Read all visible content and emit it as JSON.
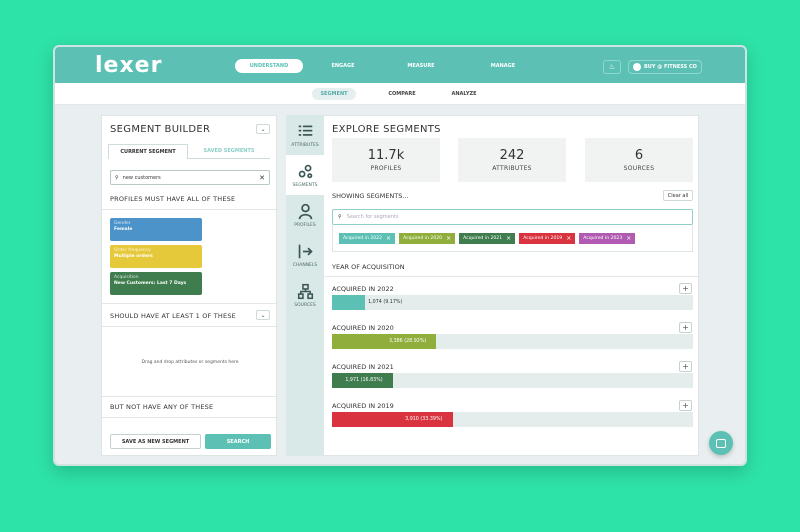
{
  "app": {
    "logo": "lexer"
  },
  "nav": {
    "tabs": [
      {
        "label": "UNDERSTAND",
        "active": true
      },
      {
        "label": "ENGAGE",
        "active": false
      },
      {
        "label": "MEASURE",
        "active": false
      },
      {
        "label": "MANAGE",
        "active": false
      }
    ],
    "account": "BUY @ FITNESS CO"
  },
  "subnav": {
    "tabs": [
      {
        "label": "SEGMENT",
        "active": true
      },
      {
        "label": "COMPARE",
        "active": false
      },
      {
        "label": "ANALYZE",
        "active": false
      }
    ]
  },
  "builder": {
    "title": "SEGMENT BUILDER",
    "tabs": [
      "CURRENT SEGMENT",
      "SAVED SEGMENTS"
    ],
    "search_value": "new customers",
    "must_label": "PROFILES MUST HAVE ALL OF THESE",
    "chips": [
      {
        "key": "Gender",
        "value": "Female",
        "color": "#4c93c9"
      },
      {
        "key": "Order frequency",
        "value": "Multiple orders",
        "color": "#e6c93a"
      },
      {
        "key": "Acquisition",
        "value": "New Customers: Last 7 Days",
        "color": "#3f7d4e"
      }
    ],
    "should_label": "SHOULD HAVE AT LEAST 1 OF THESE",
    "drop_text": "Drag and drop attributes or segments here",
    "not_label": "BUT NOT HAVE ANY OF THESE",
    "save_button": "SAVE AS NEW SEGMENT",
    "search_button": "SEARCH"
  },
  "rail": [
    {
      "label": "ATTRIBUTES",
      "icon": "list-icon",
      "active": false
    },
    {
      "label": "SEGMENTS",
      "icon": "segments-icon",
      "active": true
    },
    {
      "label": "PROFILES",
      "icon": "profile-icon",
      "active": false
    },
    {
      "label": "CHANNELS",
      "icon": "channels-icon",
      "active": false
    },
    {
      "label": "SOURCES",
      "icon": "sources-icon",
      "active": false
    }
  ],
  "explore": {
    "title": "EXPLORE SEGMENTS",
    "stats": [
      {
        "value": "11.7k",
        "label": "PROFILES"
      },
      {
        "value": "242",
        "label": "ATTRIBUTES"
      },
      {
        "value": "6",
        "label": "SOURCES"
      }
    ],
    "showing_label": "SHOWING SEGMENTS...",
    "clear_label": "Clear all",
    "search_placeholder": "Search for segments",
    "tags": [
      {
        "label": "Acquired in 2022",
        "color": "#5cc0b5"
      },
      {
        "label": "Acquired in 2020",
        "color": "#8fae3c"
      },
      {
        "label": "Acquired in 2021",
        "color": "#3f7d4e"
      },
      {
        "label": "Acquired in 2019",
        "color": "#d8333f"
      },
      {
        "label": "Acquired in 2023",
        "color": "#b05bb1"
      }
    ],
    "year_heading": "YEAR OF ACQUISITION",
    "buckets": [
      {
        "label": "ACQUIRED IN 2022",
        "value_text": "1,074 (9.17%)",
        "fraction": 0.0917,
        "color": "#5cc0b5"
      },
      {
        "label": "ACQUIRED IN 2020",
        "value_text": "3,386 (28.92%)",
        "fraction": 0.2892,
        "color": "#8fae3c"
      },
      {
        "label": "ACQUIRED IN 2021",
        "value_text": "1,971 (16.83%)",
        "fraction": 0.1683,
        "color": "#3f7d4e"
      },
      {
        "label": "ACQUIRED IN 2019",
        "value_text": "3,910 (33.39%)",
        "fraction": 0.3339,
        "color": "#d8333f"
      }
    ]
  }
}
